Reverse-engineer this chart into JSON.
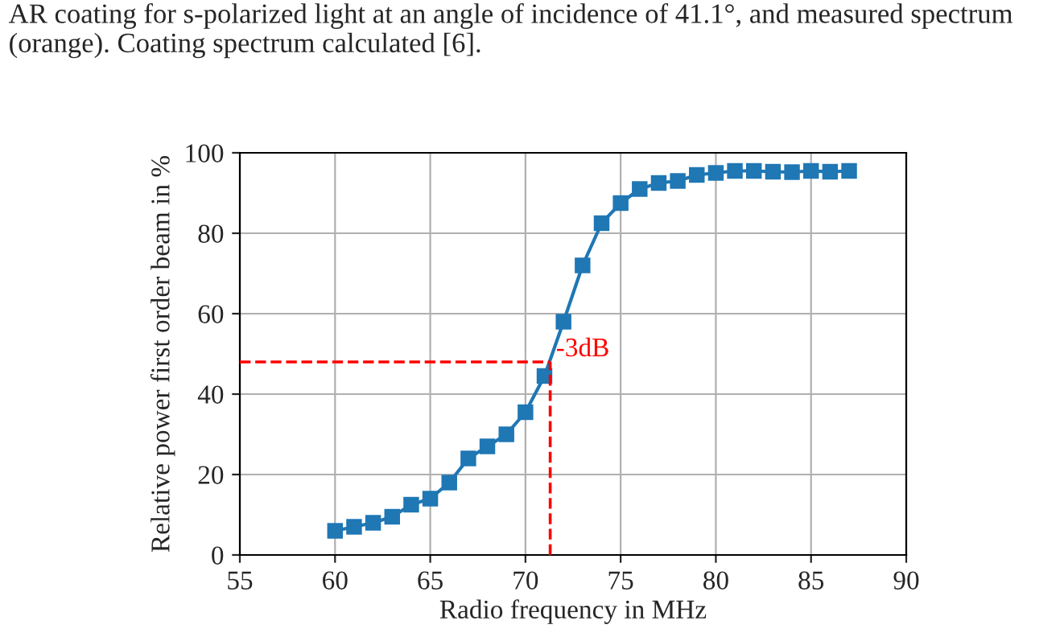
{
  "chart_data": {
    "type": "line",
    "annotations": [
      "AR coating for s-polarized light at an angle of incidence of 41.1°, and measured spectrum (orange). Coating spectrum calculated [6]."
    ],
    "xlabel": "Radio frequency in MHz",
    "ylabel": "Relative power first order beam in %",
    "x": [
      60,
      61,
      62,
      63,
      64,
      65,
      66,
      67,
      68,
      69,
      70,
      71,
      72,
      73,
      74,
      75,
      76,
      77,
      78,
      79,
      80,
      81,
      82,
      83,
      84,
      85,
      86,
      87
    ],
    "series": [
      {
        "color": "#1f77b4",
        "values": [
          6,
          7,
          8,
          9.5,
          12.5,
          14,
          18,
          24,
          27,
          30,
          35.5,
          44.5,
          58,
          72,
          82.5,
          87.5,
          91,
          92.5,
          93,
          94.5,
          95,
          95.5,
          95.5,
          95.3,
          95.2,
          95.5,
          95.3,
          95.5
        ]
      }
    ],
    "xlim": [
      55,
      90
    ],
    "xticks": [
      55,
      60,
      65,
      70,
      75,
      80,
      85,
      90
    ],
    "ylim": [
      0,
      100
    ],
    "yticks": [
      0,
      20,
      40,
      60,
      80,
      100
    ],
    "ref_lines": [
      {
        "axis": "y",
        "value": 48,
        "label": "-3dB",
        "color": "#ff0000",
        "line_style": "dashed"
      },
      {
        "axis": "x",
        "value": 71.3,
        "color": "#ff0000",
        "line_style": "dashed"
      }
    ],
    "grid": true,
    "marker": "square",
    "line_style": "solid",
    "legend": false
  }
}
